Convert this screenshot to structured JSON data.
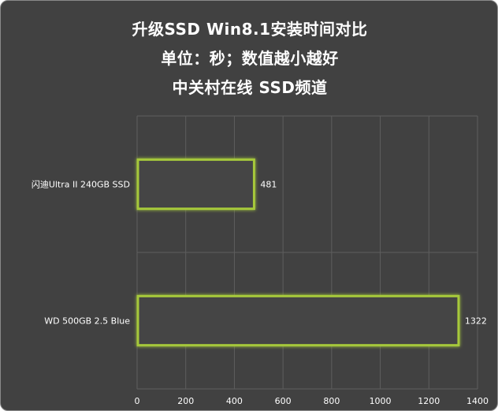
{
  "chart_data": {
    "type": "bar",
    "orientation": "horizontal",
    "title": [
      "升级SSD Win8.1安装时间对比",
      "单位：秒；数值越小越好",
      "中关村在线 SSD频道"
    ],
    "categories": [
      "闪迪Ultra II 240GB SSD",
      "WD 500GB 2.5 Blue"
    ],
    "values": [
      481,
      1322
    ],
    "xlim": [
      0,
      1400
    ],
    "xticks": [
      0,
      200,
      400,
      600,
      800,
      1000,
      1200,
      1400
    ],
    "grid": true,
    "legend": "none",
    "colors": {
      "background": "#414141",
      "bar_fill": "#444444",
      "bar_outline": "#a6c83a",
      "bar_glow": "#d9ff5a",
      "grid": "#5e5e5e",
      "text": "#ffffff"
    }
  }
}
